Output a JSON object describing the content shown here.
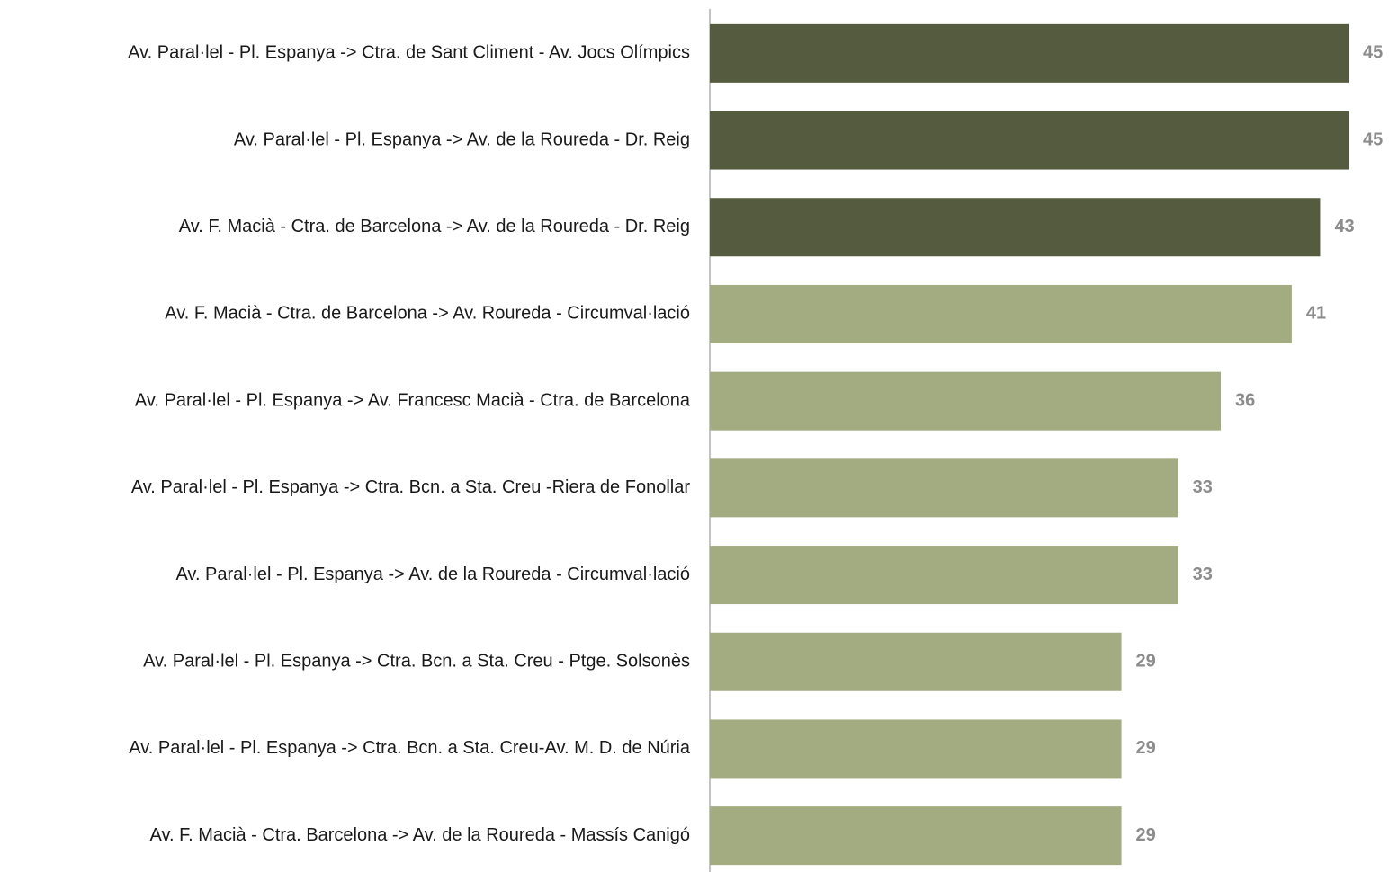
{
  "chart_data": {
    "type": "hbar",
    "categories": [
      "Av. Paral·lel - Pl. Espanya -> Ctra. de Sant Climent - Av. Jocs Olímpics",
      "Av. Paral·lel - Pl. Espanya -> Av. de la Roureda - Dr. Reig",
      "Av. F. Macià - Ctra. de Barcelona -> Av. de la Roureda - Dr. Reig",
      "Av. F. Macià - Ctra. de Barcelona -> Av. Roureda - Circumval·lació",
      "Av. Paral·lel - Pl. Espanya -> Av. Francesc Macià - Ctra. de Barcelona",
      "Av. Paral·lel - Pl. Espanya -> Ctra. Bcn. a Sta. Creu -Riera de Fonollar",
      "Av. Paral·lel - Pl. Espanya -> Av. de la Roureda - Circumval·lació",
      "Av. Paral·lel - Pl. Espanya -> Ctra. Bcn. a Sta. Creu - Ptge. Solsonès",
      "Av. Paral·lel - Pl. Espanya -> Ctra. Bcn. a Sta. Creu-Av. M. D. de Núria",
      "Av. F. Macià - Ctra. Barcelona -> Av. de la Roureda - Massís Canigó"
    ],
    "values": [
      45,
      45,
      43,
      41,
      36,
      33,
      33,
      29,
      29,
      29
    ],
    "colors": [
      "#555b3e",
      "#555b3e",
      "#555b3e",
      "#a3ab80",
      "#a3ab80",
      "#a3ab80",
      "#a3ab80",
      "#a3ab80",
      "#a3ab80",
      "#a3ab80"
    ]
  }
}
